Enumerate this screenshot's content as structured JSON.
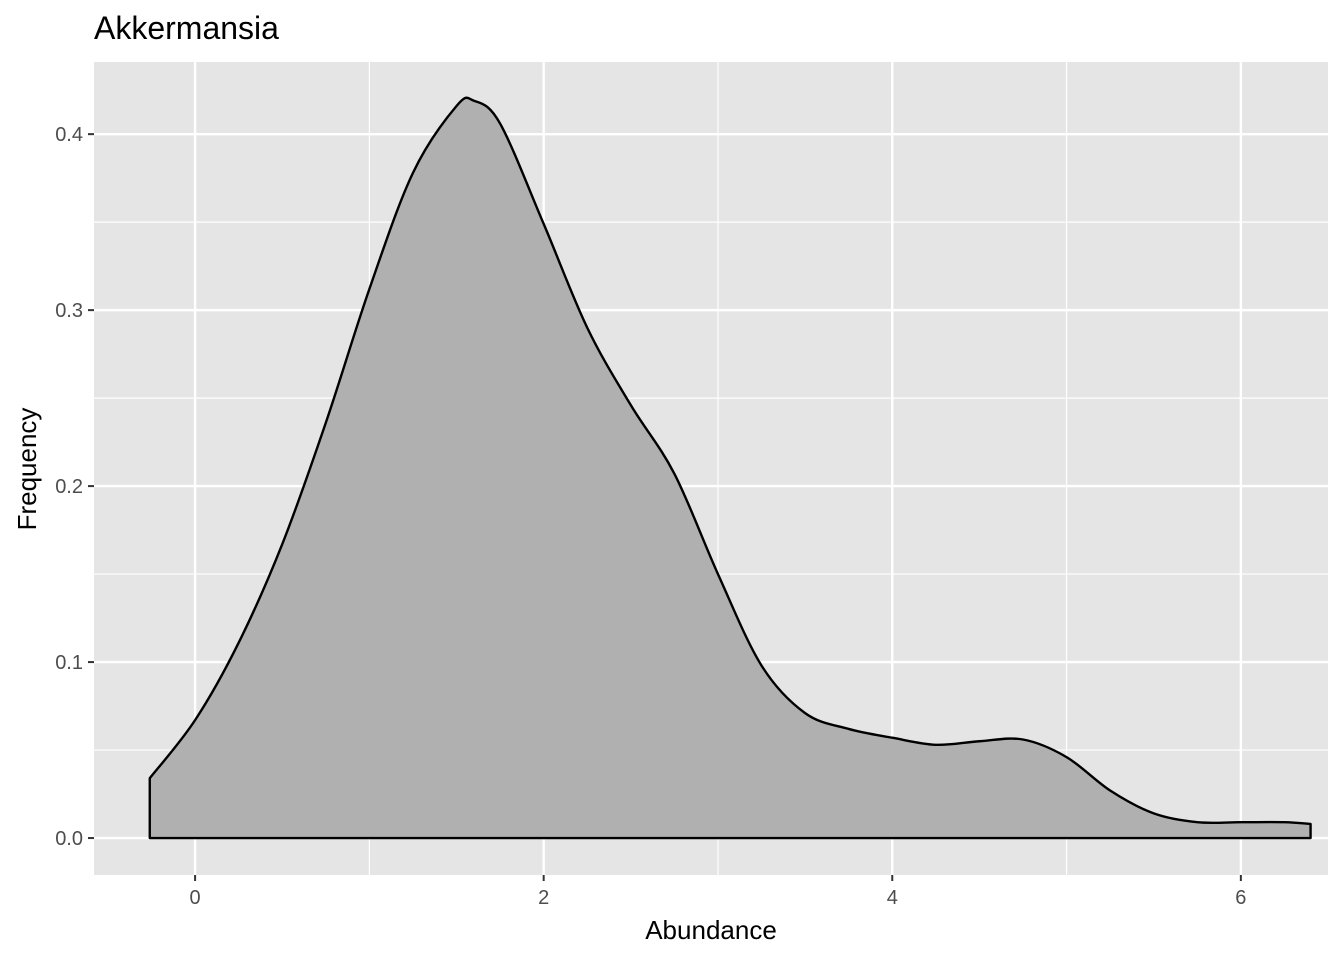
{
  "chart_data": {
    "type": "area",
    "subtype": "density",
    "title": "Akkermansia",
    "xlabel": "Abundance",
    "ylabel": "Frequency",
    "xlim": [
      -0.58,
      6.5
    ],
    "ylim": [
      -0.021,
      0.441
    ],
    "x_ticks": [
      0,
      2,
      4,
      6
    ],
    "x_tick_labels": [
      "0",
      "2",
      "4",
      "6"
    ],
    "y_ticks": [
      0.0,
      0.1,
      0.2,
      0.3,
      0.4
    ],
    "y_tick_labels": [
      "0.0",
      "0.1",
      "0.2",
      "0.3",
      "0.4"
    ],
    "grid": true,
    "legend": "none",
    "colors": {
      "panel_background": "#e5e5e5",
      "grid": "#ffffff",
      "fill": "#b0b0b0",
      "stroke": "#000000"
    },
    "series": [
      {
        "x": [
          -0.26,
          0.0,
          0.25,
          0.5,
          0.75,
          1.0,
          1.25,
          1.5,
          1.6,
          1.75,
          2.0,
          2.25,
          2.5,
          2.75,
          3.0,
          3.25,
          3.5,
          3.75,
          4.0,
          4.25,
          4.5,
          4.75,
          5.0,
          5.25,
          5.5,
          5.75,
          6.0,
          6.25,
          6.4
        ],
        "y": [
          0.034,
          0.067,
          0.111,
          0.167,
          0.236,
          0.312,
          0.378,
          0.416,
          0.419,
          0.406,
          0.349,
          0.29,
          0.246,
          0.207,
          0.15,
          0.098,
          0.071,
          0.062,
          0.057,
          0.053,
          0.055,
          0.056,
          0.046,
          0.027,
          0.014,
          0.009,
          0.009,
          0.009,
          0.008
        ]
      }
    ]
  }
}
